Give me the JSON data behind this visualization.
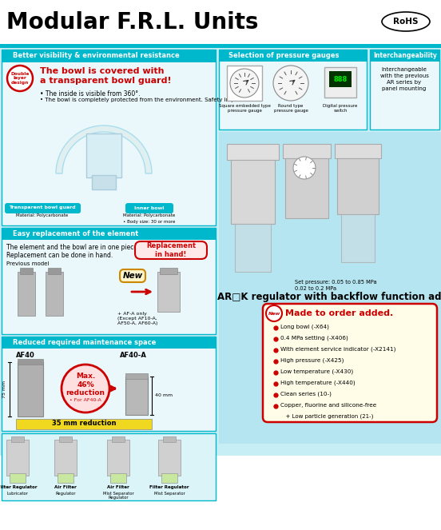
{
  "title": "Modular F.R.L. Units",
  "bg_color": "#ffffff",
  "teal_color": "#00b8cc",
  "teal_light": "#c8eef5",
  "teal_section_bg": "#daf4f8",
  "red_color": "#cc0000",
  "yellow_bar": "#f0d820",
  "made_bg": "#fffde8",
  "section1_title": "Better visibility & environmental resistance",
  "section1_heading1": "The bowl is covered with",
  "section1_heading2": "a transparent bowl guard!",
  "section1_bullet1": "The inside is visible from 360°.",
  "section1_bullet2": "The bowl is completely protected from the environment. Safety improved",
  "section1_circle": "Double\nlayer\ndesign",
  "section1_label1": "Transparent bowl guard",
  "section1_label1b": "Material: Polycarbonate",
  "section1_label2": "Inner bowl",
  "section1_label2b": "Material: Polycarbonate",
  "section1_label2c": "Body size: 30 or more",
  "section2_title": "Easy replacement of the element",
  "section2_text1": "The element and the bowl are in one piece.",
  "section2_text2": "Replacement can be done in hand.",
  "section2_prev": "Previous model",
  "section2_new": "New",
  "section2_replacement": "Replacement\nin hand!",
  "section2_note": "+ AF-A only\n(Except AF10-A,\nAF50-A, AF60-A)",
  "section3_title": "Reduced required maintenance space",
  "section3_af40": "AF40",
  "section3_af40a": "AF40-A",
  "section3_75mm": "75 mm",
  "section3_40mm": "40 mm",
  "section3_reduction": "Max.\n46%\nreduction",
  "section3_for": "• For AF40-A",
  "section3_35mm": "35 mm reduction",
  "gauge_title": "Selection of pressure gauges",
  "gauge1_label": "Square embedded type\npressure gauge",
  "gauge2_label": "Round type\npressure gauge",
  "gauge3_label": "Digital pressure\nswitch",
  "interchg_title": "Interchangeability",
  "interchg_text": "Interchangeable\nwith the previous\nAR series by\npanel mounting",
  "setpressure": "Set pressure: 0.05 to 0.85 MPa\n0.02 to 0.2 MPa",
  "ar_text": "AR□K regulator with backflow function added.",
  "made_title": "Made to order added.",
  "made_new": "New",
  "made_bullets": [
    "Long bowl (-X64)",
    "0.4 MPa setting (-X406)",
    "With element service indicator (-X2141)",
    "High pressure (-X425)",
    "Low temperature (-X430)",
    "High temperature (-X440)",
    "Clean series (10-)",
    "Copper, fluorine and silicone-free",
    "  + Low particle generation (21-)"
  ],
  "bottom_labels": [
    [
      "Filter Regulator",
      "Lubricator"
    ],
    [
      "Air Filter",
      "Regulator"
    ],
    [
      "Air Filter",
      "Mist Separator\nRegulator"
    ],
    [
      "Filter Regulator",
      "Mist Separator"
    ]
  ],
  "rohs": "RoHS"
}
